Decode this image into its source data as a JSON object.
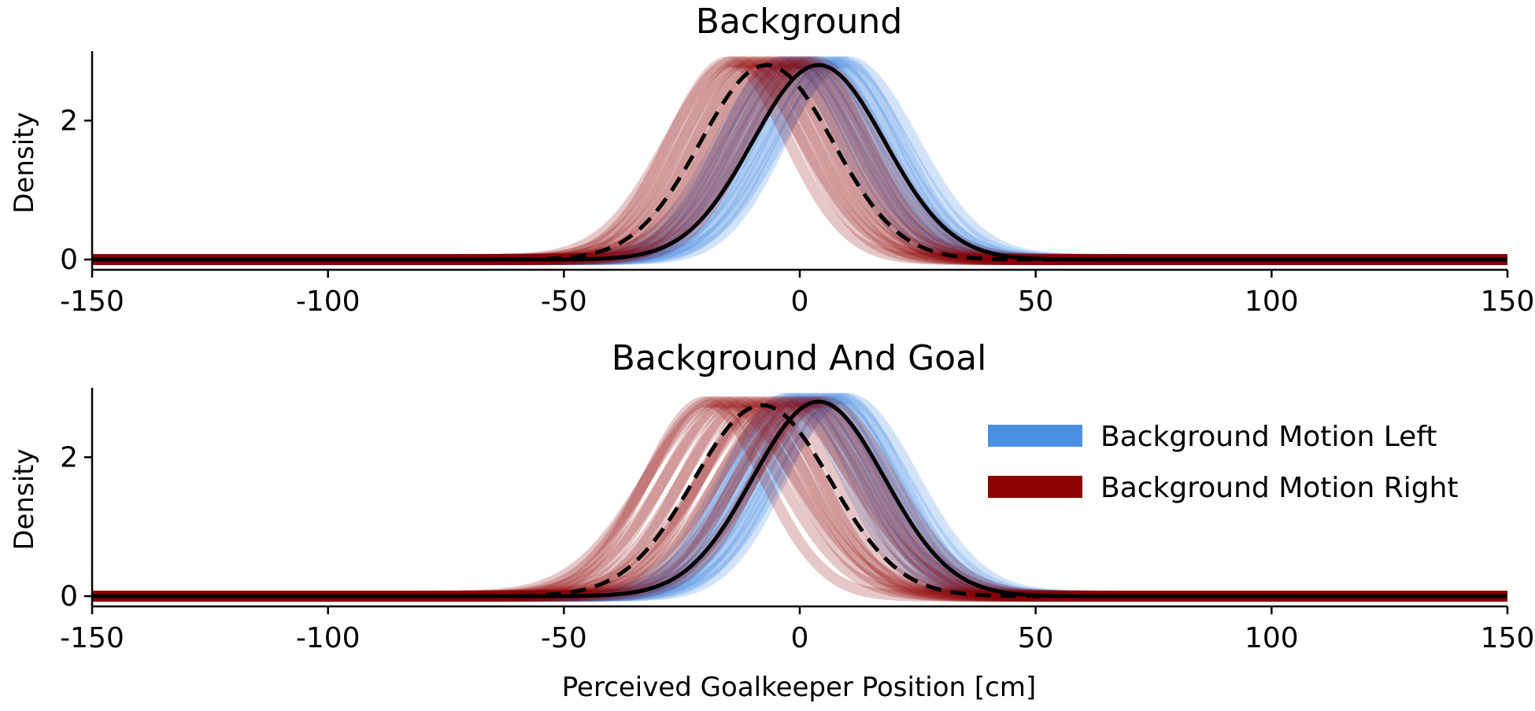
{
  "colors": {
    "left": "#4a90e2",
    "right": "#8b0000",
    "mean": "#000000"
  },
  "chart_data": [
    {
      "type": "line",
      "title": "Background",
      "xlabel": "",
      "ylabel": "Density",
      "xlim": [
        -150,
        150
      ],
      "ylim": [
        0,
        3
      ],
      "xticks": [
        "-150",
        "-100",
        "-50",
        "0",
        "50",
        "100",
        "150"
      ],
      "yticks": [
        "0",
        "2"
      ],
      "grid": false,
      "legend": false,
      "series": [
        {
          "key": "left",
          "line": "solid",
          "mean": 4,
          "sd": 14,
          "peak": 2.8,
          "bundle_mean_range": [
            -4,
            10
          ],
          "bundle_sd_range": [
            12.5,
            15.5
          ],
          "bundle_count": 14
        },
        {
          "key": "right",
          "line": "dashed",
          "mean": -7,
          "sd": 14,
          "peak": 2.8,
          "bundle_mean_range": [
            -15,
            3
          ],
          "bundle_sd_range": [
            12.5,
            15.5
          ],
          "bundle_count": 14
        }
      ]
    },
    {
      "type": "line",
      "title": "Background And Goal",
      "xlabel": "Perceived Goalkeeper Position [cm]",
      "ylabel": "Density",
      "xlim": [
        -150,
        150
      ],
      "ylim": [
        0,
        3
      ],
      "xticks": [
        "-150",
        "-100",
        "-50",
        "0",
        "50",
        "100",
        "150"
      ],
      "yticks": [
        "0",
        "2"
      ],
      "grid": false,
      "legend": true,
      "legend_position": "top-right",
      "legend_entries": [
        {
          "key": "left",
          "label": "Background Motion Left"
        },
        {
          "key": "right",
          "label": "Background Motion Right"
        }
      ],
      "series": [
        {
          "key": "left",
          "line": "solid",
          "mean": 4,
          "sd": 14,
          "peak": 2.8,
          "bundle_mean_range": [
            -3,
            10
          ],
          "bundle_sd_range": [
            12.5,
            15.5
          ],
          "bundle_count": 14
        },
        {
          "key": "right",
          "line": "dashed",
          "mean": -8,
          "sd": 14.5,
          "peak": 2.75,
          "bundle_mean_range": [
            -20,
            5
          ],
          "bundle_sd_range": [
            12.5,
            16
          ],
          "bundle_count": 16
        }
      ]
    }
  ]
}
